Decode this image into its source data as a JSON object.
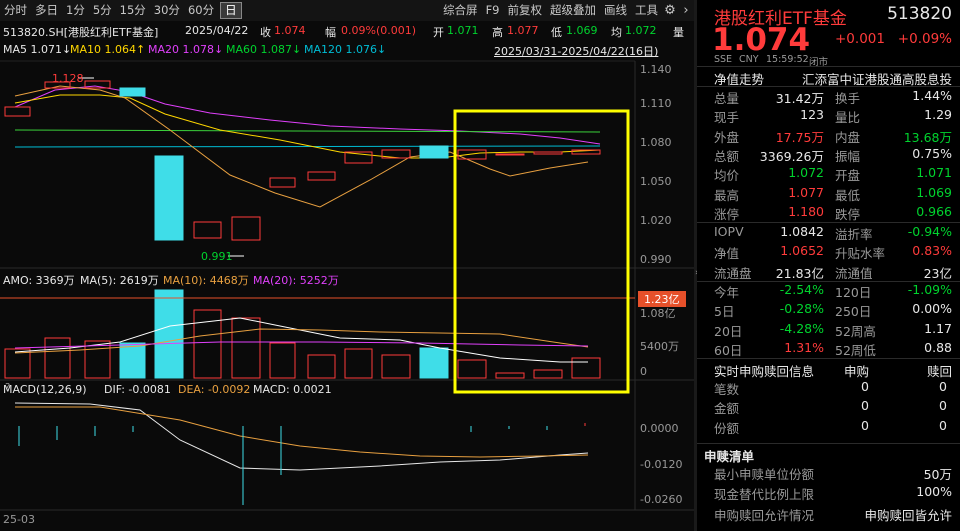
{
  "toolbar": {
    "periods": [
      "分时",
      "多日",
      "1分",
      "5分",
      "15分",
      "30分",
      "60分",
      "日"
    ],
    "selected": "日",
    "right": [
      "综合屏",
      "F9",
      "前复权",
      "超级叠加",
      "画线",
      "工具"
    ],
    "gear": "gear-icon",
    "more": "chevron-right-icon"
  },
  "info": {
    "code_name": "513820.SH[港股红利ETF基金]",
    "date": "2025/04/22",
    "close_label": "收",
    "close": "1.074",
    "change_label": "幅",
    "change": "0.09%(0.001)",
    "open_label": "开",
    "open": "1.071",
    "high_label": "高",
    "high": "1.077",
    "low_label": "低",
    "low": "1.069",
    "avg_label": "均",
    "avg": "1.072",
    "qty_label": "量",
    "range": "2025/03/31-2025/04/22(16日)"
  },
  "ma": {
    "ma5": "MA5 1.071↓",
    "ma10": "MA10 1.064↑",
    "ma20": "MA20 1.078↓",
    "ma60": "MA60 1.087↓",
    "ma120": "MA120 1.076↓"
  },
  "price_axis": [
    "1.140",
    "1.110",
    "1.080",
    "1.050",
    "1.020",
    "0.990"
  ],
  "price_annot": {
    "max": "1.128",
    "min": "0.991"
  },
  "amo": {
    "label": "AMO: 3369万",
    "ma5": "MA(5): 2619万",
    "ma10": "MA(10): 4468万",
    "ma20": "MA(20): 5252万"
  },
  "amo_axis": [
    "1.08亿",
    "5400万",
    "0"
  ],
  "amo_marker": "1.23亿",
  "macd": {
    "label": "MACD(12,26,9)",
    "dif": "DIF: -0.0081",
    "dea": "DEA: -0.0092",
    "macd": "MACD: 0.0021"
  },
  "macd_axis": [
    "0.0000",
    "-0.0120",
    "-0.0260"
  ],
  "xaxis": "25-03",
  "colors": {
    "up": "#ff3b3b",
    "down": "#3fdde8",
    "highlight": "#ffff00"
  },
  "quote": {
    "name": "港股红利ETF基金",
    "code": "513820",
    "price": "1.074",
    "chg": "+0.001",
    "pct": "+0.09%",
    "exchange": "SSE",
    "currency": "CNY",
    "time": "15:59:52",
    "status": "闭市"
  },
  "nav_label": "净值走势",
  "index_name": "汇添富中证港股通高股息投",
  "stats": [
    {
      "l": "总量",
      "v": "31.42万",
      "vc": "wht",
      "l2": "换手",
      "v2": "1.44%",
      "v2c": "wht"
    },
    {
      "l": "现手",
      "v": "123",
      "vc": "wht",
      "l2": "量比",
      "v2": "1.29",
      "v2c": "wht"
    },
    {
      "l": "外盘",
      "v": "17.75万",
      "vc": "red",
      "l2": "内盘",
      "v2": "13.68万",
      "v2c": "grn"
    },
    {
      "l": "总额",
      "v": "3369.26万",
      "vc": "wht",
      "l2": "振幅",
      "v2": "0.75%",
      "v2c": "wht"
    },
    {
      "l": "均价",
      "v": "1.072",
      "vc": "grn",
      "l2": "开盘",
      "v2": "1.071",
      "v2c": "grn"
    },
    {
      "l": "最高",
      "v": "1.077",
      "vc": "red",
      "l2": "最低",
      "v2": "1.069",
      "v2c": "grn"
    },
    {
      "l": "涨停",
      "v": "1.180",
      "vc": "red",
      "l2": "跌停",
      "v2": "0.966",
      "v2c": "grn"
    }
  ],
  "stats2": [
    {
      "l": "IOPV",
      "v": "1.0842",
      "vc": "wht",
      "l2": "溢折率",
      "v2": "-0.94%",
      "v2c": "grn"
    },
    {
      "l": "净值",
      "v": "1.0652",
      "vc": "red",
      "l2": "升贴水率",
      "v2": "0.83%",
      "v2c": "red"
    },
    {
      "l": "流通盘",
      "v": "21.83亿",
      "vc": "wht",
      "l2": "流通值",
      "v2": "23亿",
      "v2c": "wht"
    }
  ],
  "stats3": [
    {
      "l": "今年",
      "v": "-2.54%",
      "vc": "grn",
      "l2": "120日",
      "v2": "-1.09%",
      "v2c": "grn"
    },
    {
      "l": "5日",
      "v": "-0.28%",
      "vc": "grn",
      "l2": "250日",
      "v2": "0.00%",
      "v2c": "wht"
    },
    {
      "l": "20日",
      "v": "-4.28%",
      "vc": "grn",
      "l2": "52周高",
      "v2": "1.17",
      "v2c": "wht"
    },
    {
      "l": "60日",
      "v": "1.31%",
      "vc": "red",
      "l2": "52周低",
      "v2": "0.88",
      "v2c": "wht"
    }
  ],
  "realtime": {
    "title": "实时申购赎回信息",
    "h1": "申购",
    "h2": "赎回",
    "rows": [
      {
        "l": "笔数",
        "a": "0",
        "b": "0"
      },
      {
        "l": "金额",
        "a": "0",
        "b": "0"
      },
      {
        "l": "份额",
        "a": "0",
        "b": "0"
      }
    ]
  },
  "redeem": {
    "title": "申赎清单",
    "rows": [
      {
        "l": "最小申赎单位份额",
        "v": "50万"
      },
      {
        "l": "现金替代比例上限",
        "v": "100%"
      },
      {
        "l": "申购赎回允许情况",
        "v": "申购赎回皆允许"
      }
    ]
  }
}
